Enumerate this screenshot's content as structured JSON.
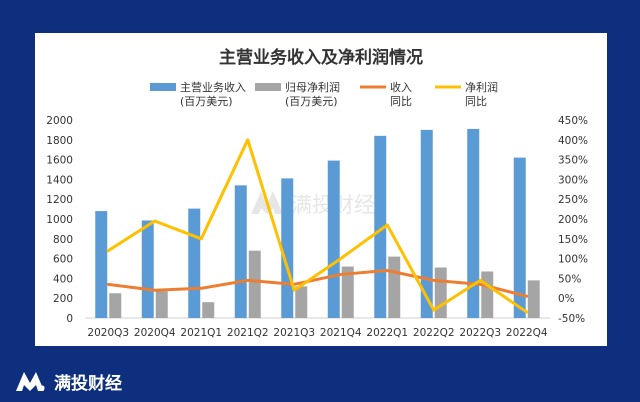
{
  "chart_data": {
    "type": "bar",
    "title": "主营业务收入及净利润情况",
    "categories": [
      "2020Q3",
      "2020Q4",
      "2021Q1",
      "2021Q2",
      "2021Q3",
      "2021Q4",
      "2022Q1",
      "2022Q2",
      "2022Q3",
      "2022Q4"
    ],
    "series": [
      {
        "name": "主营业务收入(百万美元)",
        "label_lines": [
          "主营业务收入",
          "(百万美元)"
        ],
        "type": "bar",
        "axis": "left",
        "color": "#5b9bd5",
        "values": [
          1080,
          985,
          1105,
          1340,
          1410,
          1590,
          1840,
          1900,
          1910,
          1620
        ]
      },
      {
        "name": "归母净利润(百万美元)",
        "label_lines": [
          "归母净利润",
          "(百万美元)"
        ],
        "type": "bar",
        "axis": "left",
        "color": "#a5a5a5",
        "values": [
          250,
          270,
          160,
          680,
          320,
          520,
          620,
          510,
          470,
          380
        ]
      },
      {
        "name": "收入同比",
        "label_lines": [
          "收入",
          "同比"
        ],
        "type": "line",
        "axis": "right",
        "color": "#ed7d31",
        "values": [
          35,
          20,
          25,
          45,
          35,
          60,
          70,
          45,
          35,
          5
        ]
      },
      {
        "name": "净利润同比",
        "label_lines": [
          "净利润",
          "同比"
        ],
        "type": "line",
        "axis": "right",
        "color": "#ffc000",
        "values": [
          120,
          195,
          150,
          400,
          20,
          100,
          185,
          -30,
          45,
          -35
        ]
      }
    ],
    "left_axis": {
      "min": 0,
      "max": 2000,
      "ticks": [
        "0",
        "200",
        "400",
        "600",
        "800",
        "1000",
        "1200",
        "1400",
        "1600",
        "1800",
        "2000"
      ]
    },
    "right_axis": {
      "min": -50,
      "max": 450,
      "ticks": [
        "-50%",
        "0%",
        "50%",
        "100%",
        "150%",
        "200%",
        "250%",
        "300%",
        "350%",
        "400%",
        "450%"
      ]
    },
    "legend_position": "top",
    "grid": false
  },
  "watermark": {
    "text": "满投财经"
  },
  "brand": {
    "name": "满投财经"
  }
}
